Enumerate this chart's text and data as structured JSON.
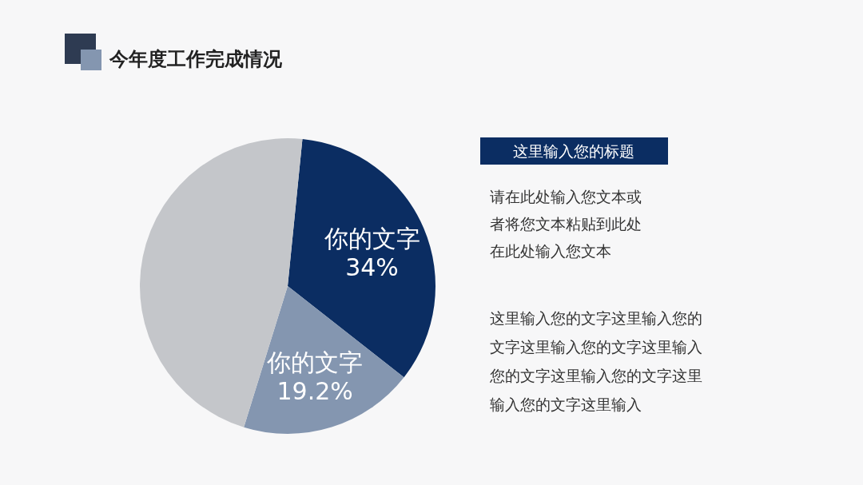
{
  "chart_data": {
    "type": "pie",
    "title": "今年度工作完成情况",
    "categories": [
      "你的文字",
      "你的文字",
      null
    ],
    "values": [
      34,
      19.2,
      46.8
    ],
    "value_labels": [
      "34%",
      "19.2%",
      null
    ],
    "colors": [
      "#0b2d62",
      "#8496b0",
      "#c4c6ca"
    ],
    "legend": false,
    "annotations": [
      "这里输入您的标题",
      "请在此处输入您文本或",
      "者将您文本粘贴到此处",
      "在此处输入您文本",
      "这里输入您的文字这里输入您的",
      "文字这里输入您的文字这里输入",
      "您的文字这里输入您的文字这里",
      "输入您的文字这里输入"
    ]
  }
}
